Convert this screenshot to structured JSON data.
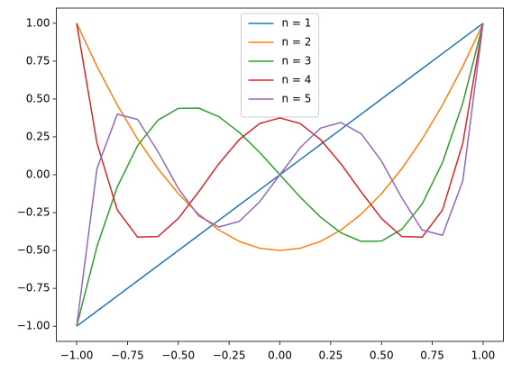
{
  "chart_data": {
    "type": "line",
    "x": [
      -1,
      -0.9,
      -0.8,
      -0.7,
      -0.6,
      -0.5,
      -0.4,
      -0.3,
      -0.2,
      -0.1,
      0,
      0.1,
      0.2,
      0.3,
      0.4,
      0.5,
      0.6,
      0.7,
      0.8,
      0.9,
      1
    ],
    "series": [
      {
        "name": "n = 1",
        "color": "#1f77b4",
        "values": [
          -1,
          -0.9,
          -0.8,
          -0.7,
          -0.6,
          -0.5,
          -0.4,
          -0.3,
          -0.2,
          -0.1,
          0,
          0.1,
          0.2,
          0.3,
          0.4,
          0.5,
          0.6,
          0.7,
          0.8,
          0.9,
          1
        ]
      },
      {
        "name": "n = 2",
        "color": "#ff7f0e",
        "values": [
          1,
          0.715,
          0.46,
          0.235,
          0.04,
          -0.125,
          -0.26,
          -0.365,
          -0.44,
          -0.485,
          -0.5,
          -0.485,
          -0.44,
          -0.365,
          -0.26,
          -0.125,
          0.04,
          0.235,
          0.46,
          0.715,
          1
        ]
      },
      {
        "name": "n = 3",
        "color": "#2ca02c",
        "values": [
          -1,
          -0.473,
          -0.08,
          0.193,
          0.36,
          0.438,
          0.44,
          0.383,
          0.28,
          0.148,
          0,
          -0.148,
          -0.28,
          -0.383,
          -0.44,
          -0.438,
          -0.36,
          -0.193,
          0.08,
          0.473,
          1
        ]
      },
      {
        "name": "n = 4",
        "color": "#d62728",
        "values": [
          1,
          0.208,
          -0.233,
          -0.412,
          -0.408,
          -0.289,
          -0.113,
          0.073,
          0.232,
          0.338,
          0.375,
          0.338,
          0.232,
          0.073,
          -0.113,
          -0.289,
          -0.408,
          -0.412,
          -0.233,
          0.208,
          1
        ]
      },
      {
        "name": "n = 5",
        "color": "#9467bd",
        "values": [
          -1,
          0.041,
          0.4,
          0.365,
          0.153,
          -0.09,
          -0.271,
          -0.345,
          -0.308,
          -0.179,
          0,
          0.179,
          0.308,
          0.345,
          0.271,
          0.09,
          -0.153,
          -0.365,
          -0.4,
          -0.041,
          1
        ]
      }
    ],
    "xlim": [
      -1.1,
      1.1
    ],
    "xticks": [
      {
        "value": -1,
        "label": "−1.00"
      },
      {
        "value": -0.75,
        "label": "−0.75"
      },
      {
        "value": -0.5,
        "label": "−0.50"
      },
      {
        "value": -0.25,
        "label": "−0.25"
      },
      {
        "value": 0,
        "label": "0.00"
      },
      {
        "value": 0.25,
        "label": "0.25"
      },
      {
        "value": 0.5,
        "label": "0.50"
      },
      {
        "value": 0.75,
        "label": "0.75"
      },
      {
        "value": 1,
        "label": "1.00"
      }
    ],
    "ylim": [
      -1.1,
      1.1
    ],
    "yticks": [
      {
        "value": -1,
        "label": "−1.00"
      },
      {
        "value": -0.75,
        "label": "−0.75"
      },
      {
        "value": -0.5,
        "label": "−0.50"
      },
      {
        "value": -0.25,
        "label": "−0.25"
      },
      {
        "value": 0,
        "label": "0.00"
      },
      {
        "value": 0.25,
        "label": "0.25"
      },
      {
        "value": 0.5,
        "label": "0.50"
      },
      {
        "value": 0.75,
        "label": "0.75"
      },
      {
        "value": 1,
        "label": "1.00"
      }
    ],
    "grid": false,
    "legend": "upper center"
  }
}
